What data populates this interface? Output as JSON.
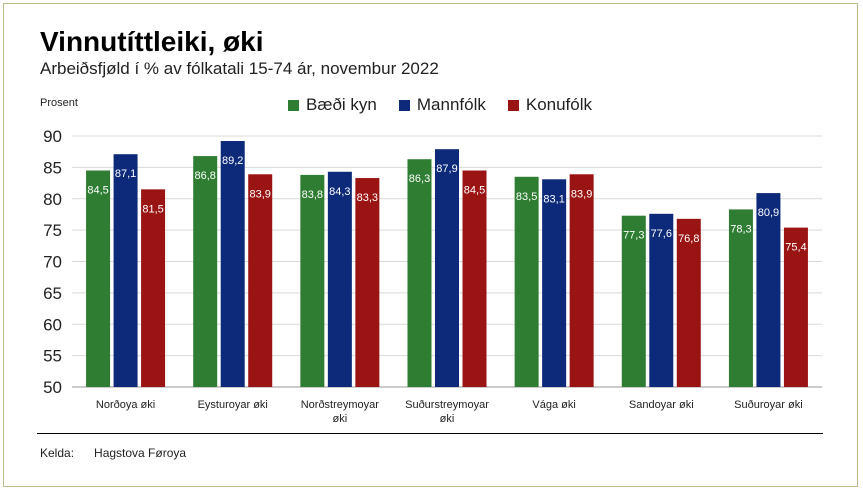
{
  "header": {
    "title": "Vinnutíttleiki, øki",
    "subtitle": "Arbeiðsfjøld í % av fólkatali 15-74 ár, novembur 2022"
  },
  "footer": {
    "source_label": "Kelda:",
    "source_value": "Hagstova Føroya"
  },
  "chart_data": {
    "type": "bar",
    "ylabel": "Prosent",
    "ylim": [
      50,
      90
    ],
    "yticks": [
      50,
      55,
      60,
      65,
      70,
      75,
      80,
      85,
      90
    ],
    "grid": true,
    "legend_position": "top",
    "categories": [
      [
        "Norðoya øki"
      ],
      [
        "Eysturoyar øki"
      ],
      [
        "Norðstreymoyar",
        "øki"
      ],
      [
        "Suðurstreymoyar",
        "øki"
      ],
      [
        "Vága øki"
      ],
      [
        "Sandoyar øki"
      ],
      [
        "Suðuroyar øki"
      ]
    ],
    "series": [
      {
        "name": "Bæði kyn",
        "color": "#2e7d32",
        "values": [
          84.5,
          86.8,
          83.8,
          86.3,
          83.5,
          77.3,
          78.3
        ]
      },
      {
        "name": "Mannfólk",
        "color": "#0d2a7a",
        "values": [
          87.1,
          89.2,
          84.3,
          87.9,
          83.1,
          77.6,
          80.9
        ]
      },
      {
        "name": "Konufólk",
        "color": "#9b1414",
        "values": [
          81.5,
          83.9,
          83.3,
          84.5,
          83.9,
          76.8,
          75.4
        ]
      }
    ],
    "value_labels": [
      [
        "84,5",
        "86,8",
        "83,8",
        "86,3",
        "83,5",
        "77,3",
        "78,3"
      ],
      [
        "87,1",
        "89,2",
        "84,3",
        "87,9",
        "83,1",
        "77,6",
        "80,9"
      ],
      [
        "81,5",
        "83,9",
        "83,3",
        "84,5",
        "83,9",
        "76,8",
        "75,4"
      ]
    ]
  }
}
